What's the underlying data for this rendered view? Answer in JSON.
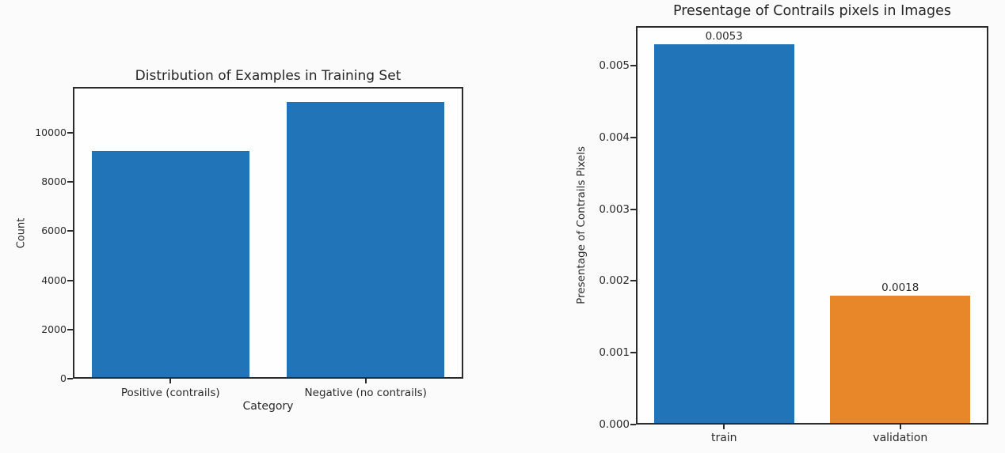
{
  "page": {
    "background": "#fbfbfb"
  },
  "colors": {
    "bar_blue": "#2174b8",
    "bar_orange": "#e8862a",
    "spine": "#2b2b2b",
    "text": "#2b2b2b"
  },
  "chart_data": [
    {
      "type": "bar",
      "title": "Distribution of Examples in Training Set",
      "xlabel": "Category",
      "ylabel": "Count",
      "categories": [
        "Positive (contrails)",
        "Negative (no contrails)"
      ],
      "values": [
        9260,
        11250
      ],
      "bar_labels": null,
      "bar_colors": [
        "#2174b8",
        "#2174b8"
      ],
      "yticks": [
        0,
        2000,
        4000,
        6000,
        8000,
        10000
      ],
      "ytick_labels": [
        "0",
        "2000",
        "4000",
        "6000",
        "8000",
        "10000"
      ],
      "ylim": [
        0,
        11870
      ],
      "grid": false,
      "legend": null
    },
    {
      "type": "bar",
      "title": "Presentage of Contrails pixels in Images",
      "xlabel": "",
      "ylabel": "Presentage of Contrails Pixels",
      "categories": [
        "train",
        "validation"
      ],
      "values": [
        0.0053,
        0.0018
      ],
      "bar_labels": [
        "0.0053",
        "0.0018"
      ],
      "bar_colors": [
        "#2174b8",
        "#e8862a"
      ],
      "yticks": [
        0,
        0.001,
        0.002,
        0.003,
        0.004,
        0.005
      ],
      "ytick_labels": [
        "0.000",
        "0.001",
        "0.002",
        "0.003",
        "0.004",
        "0.005"
      ],
      "ylim": [
        0,
        0.00555
      ],
      "grid": false,
      "legend": null
    }
  ]
}
